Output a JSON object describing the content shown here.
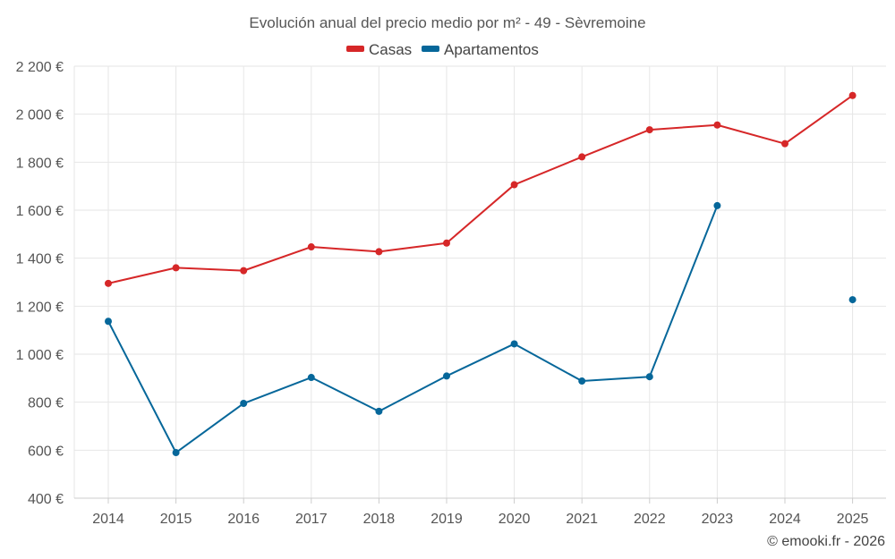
{
  "chart_data": {
    "type": "line",
    "title": "Evolución anual del precio medio por m² - 49 - Sèvremoine",
    "xlabel": "",
    "ylabel": "",
    "categories": [
      "2014",
      "2015",
      "2016",
      "2017",
      "2018",
      "2019",
      "2020",
      "2021",
      "2022",
      "2023",
      "2024",
      "2025"
    ],
    "ylim": [
      400,
      2200
    ],
    "yticks": [
      400,
      600,
      800,
      1000,
      1200,
      1400,
      1600,
      1800,
      2000,
      2200
    ],
    "ytick_labels": [
      "400 €",
      "600 €",
      "800 €",
      "1 000 €",
      "1 200 €",
      "1 400 €",
      "1 600 €",
      "1 800 €",
      "2 000 €",
      "2 200 €"
    ],
    "grid": true,
    "legend_position": "top-center",
    "series": [
      {
        "name": "Casas",
        "color": "#d62728",
        "values": [
          1295,
          1360,
          1348,
          1447,
          1427,
          1463,
          1706,
          1822,
          1935,
          1955,
          1877,
          2078
        ]
      },
      {
        "name": "Apartamentos",
        "color": "#06679a",
        "values": [
          1137,
          590,
          795,
          903,
          762,
          909,
          1043,
          888,
          906,
          1619,
          null,
          1227
        ]
      }
    ],
    "credit": "© emooki.fr - 2026"
  }
}
